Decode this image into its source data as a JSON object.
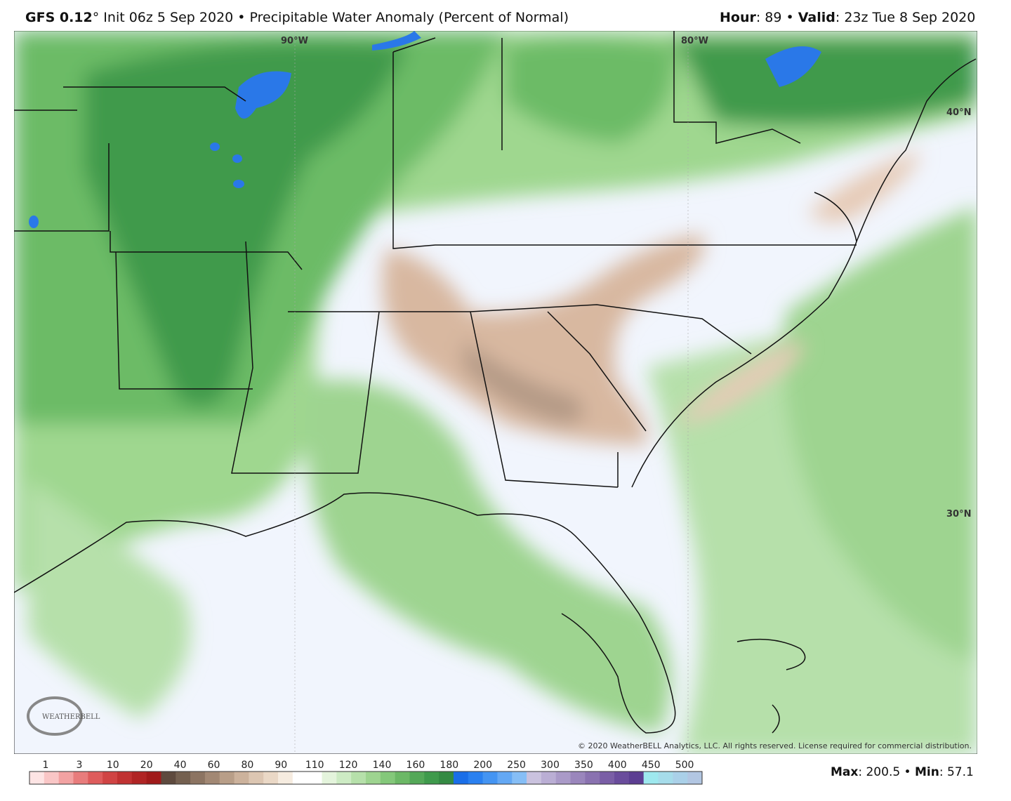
{
  "header": {
    "model": "GFS 0.12",
    "init": "° Init 06z 5 Sep 2020 • Precipitable Water Anomaly (Percent of Normal)",
    "hour_label": "Hour",
    "hour_value": ": 89 • ",
    "valid_label": "Valid",
    "valid_value": ": 23z Tue 8 Sep 2020"
  },
  "map": {
    "labels": [
      "90°W",
      "80°W",
      "40°N",
      "30°N"
    ],
    "logo": "WEATHERBELL",
    "copyright": "© 2020 WeatherBELL Analytics, LLC. All rights reserved. License required for commercial distribution."
  },
  "colorbar": {
    "ticks": [
      1,
      3,
      10,
      20,
      40,
      60,
      80,
      90,
      110,
      120,
      140,
      160,
      180,
      200,
      250,
      300,
      350,
      400,
      450,
      500
    ],
    "colors": [
      "#fde4e4",
      "#f9c6c6",
      "#f2a2a2",
      "#e87c7c",
      "#de5c5c",
      "#d04444",
      "#c03232",
      "#b02424",
      "#a01a1a",
      "#5e4a3e",
      "#746050",
      "#8c7462",
      "#a28874",
      "#b89e88",
      "#ccb29c",
      "#dcc6b2",
      "#ead8c6",
      "#f6ece0",
      "#ffffff",
      "#ffffff",
      "#e4f4dc",
      "#cdebc4",
      "#b6e0aa",
      "#9ed490",
      "#84c87a",
      "#6cb866",
      "#54a858",
      "#3f9a4c",
      "#348a43",
      "#1a6ee8",
      "#2a80f0",
      "#4494f2",
      "#64a8f4",
      "#86bef6",
      "#cac2de",
      "#baaed4",
      "#aa9ac8",
      "#9a86bc",
      "#8a72b0",
      "#7a5ea6",
      "#6a4c9c",
      "#5c3e92",
      "#9ee8ee",
      "#a6dcea",
      "#aad0e8",
      "#b2c6e2"
    ]
  },
  "footer": {
    "max_label": "Max",
    "max_value": ": 200.5 • ",
    "min_label": "Min",
    "min_value": ": 57.1"
  }
}
